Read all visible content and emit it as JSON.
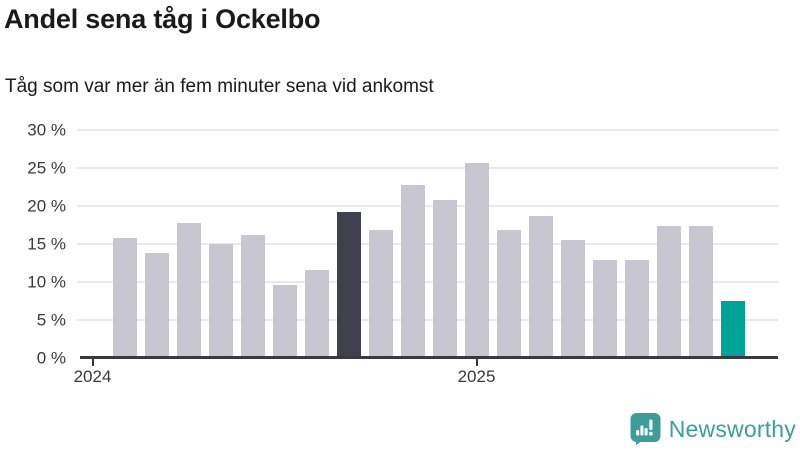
{
  "header": {
    "title": "Andel sena tåg i Ockelbo",
    "subtitle": "Tåg som var mer än fem minuter sena vid ankomst"
  },
  "chart_data": {
    "type": "bar",
    "title": "Andel sena tåg i Ockelbo",
    "subtitle": "Tåg som var mer än fem minuter sena vid ankomst",
    "xlabel": "",
    "ylabel": "",
    "unit": "%",
    "ylim": [
      0,
      30
    ],
    "grid": true,
    "legend": false,
    "slots": 21,
    "values": [
      null,
      15.7,
      13.8,
      17.8,
      15.0,
      16.2,
      9.5,
      11.5,
      19.2,
      16.8,
      22.7,
      20.8,
      25.6,
      16.8,
      18.6,
      15.5,
      12.9,
      12.9,
      17.3,
      17.3,
      7.4
    ],
    "bar_roles": [
      null,
      "default",
      "default",
      "default",
      "default",
      "default",
      "default",
      "default",
      "dark",
      "default",
      "default",
      "default",
      "default",
      "default",
      "default",
      "default",
      "default",
      "default",
      "default",
      "default",
      "teal"
    ],
    "ytick_values": [
      0,
      5,
      10,
      15,
      20,
      25,
      30
    ],
    "ytick_labels": [
      "0 %",
      "5 %",
      "10 %",
      "15 %",
      "20 %",
      "25 %",
      "30 %"
    ],
    "xticks": [
      {
        "slot": 0,
        "label": "2024"
      },
      {
        "slot": 12,
        "label": "2025"
      }
    ],
    "colors": {
      "bar_default": "#c8c7d1",
      "bar_dark": "#41404e",
      "bar_teal": "#00a397",
      "gridline": "#e8e7eb",
      "axis": "#3b3b3d",
      "tick_text": "#3a3a3a",
      "title_text": "#1a1a1a"
    }
  },
  "footer": {
    "brand": "Newsworthy",
    "brand_color": "#3b9f98",
    "logo_icon": "bar-chart-speech-bubble-icon"
  }
}
